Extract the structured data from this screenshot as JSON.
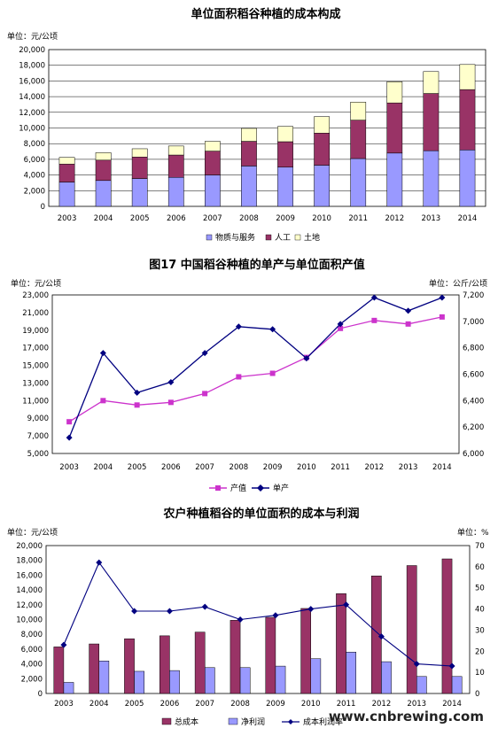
{
  "chart_data": [
    {
      "type": "bar",
      "stacked": true,
      "title": "单位面积稻谷种植的成本构成",
      "unit_label": "单位：元/公顷",
      "categories": [
        "2003",
        "2004",
        "2005",
        "2006",
        "2007",
        "2008",
        "2009",
        "2010",
        "2011",
        "2012",
        "2013",
        "2014"
      ],
      "series": [
        {
          "name": "物质与服务",
          "color": "#9999ff",
          "values": [
            3100,
            3300,
            3550,
            3700,
            4000,
            5150,
            5000,
            5250,
            6100,
            6800,
            7100,
            7200
          ]
        },
        {
          "name": "人工",
          "color": "#993366",
          "values": [
            2300,
            2600,
            2750,
            2850,
            3050,
            3150,
            3250,
            4100,
            4900,
            6400,
            7300,
            7700
          ]
        },
        {
          "name": "土地",
          "color": "#ffffcc",
          "values": [
            850,
            950,
            1050,
            1150,
            1250,
            1650,
            1950,
            2100,
            2300,
            2700,
            2800,
            3200
          ]
        }
      ],
      "ylim": [
        0,
        20000
      ],
      "yticks": [
        "0",
        "2,000",
        "4,000",
        "6,000",
        "8,000",
        "10,000",
        "12,000",
        "14,000",
        "16,000",
        "18,000",
        "20,000"
      ],
      "legend_labels": [
        "物质与服务",
        "人工",
        "土地"
      ],
      "grid": true,
      "legend_position": "bottom"
    },
    {
      "type": "line",
      "title": "图17 中国稻谷种植的单产与单位面积产值",
      "left_unit_label": "单位：元/公顷",
      "right_unit_label": "单位：公斤/公顷",
      "categories": [
        "2003",
        "2004",
        "2005",
        "2006",
        "2007",
        "2008",
        "2009",
        "2010",
        "2011",
        "2012",
        "2013",
        "2014"
      ],
      "series": [
        {
          "name": "产值",
          "axis": "left",
          "color": "#cc33cc",
          "values": [
            8600,
            11000,
            10500,
            10800,
            11800,
            13700,
            14100,
            15900,
            19200,
            20100,
            19700,
            20500
          ]
        },
        {
          "name": "单产",
          "axis": "right",
          "color": "#000080",
          "values": [
            6120,
            6760,
            6460,
            6540,
            6760,
            6960,
            6940,
            6720,
            6980,
            7180,
            7080,
            7180
          ]
        }
      ],
      "ylim_left": [
        5000,
        23000
      ],
      "yticks_left": [
        "5,000",
        "7,000",
        "9,000",
        "11,000",
        "13,000",
        "15,000",
        "17,000",
        "19,000",
        "21,000",
        "23,000"
      ],
      "ylim_right": [
        6000,
        7200
      ],
      "yticks_right": [
        "6,000",
        "6,200",
        "6,400",
        "6,600",
        "6,800",
        "7,000",
        "7,200"
      ],
      "legend_labels": [
        "产值",
        "单产"
      ],
      "legend_position": "bottom"
    },
    {
      "type": "bar",
      "title": "农户种植稻谷的单位面积的成本与利润",
      "left_unit_label": "单位：元/公顷",
      "right_unit_label": "单位：%",
      "categories": [
        "2003",
        "2004",
        "2005",
        "2006",
        "2007",
        "2008",
        "2009",
        "2010",
        "2011",
        "2012",
        "2013",
        "2014"
      ],
      "series": [
        {
          "name": "总成本",
          "type": "bar",
          "axis": "left",
          "color": "#993366",
          "values": [
            6300,
            6700,
            7400,
            7800,
            8300,
            9900,
            10300,
            11500,
            13500,
            15900,
            17300,
            18200
          ]
        },
        {
          "name": "净利润",
          "type": "bar",
          "axis": "left",
          "color": "#9999ff",
          "values": [
            1500,
            4400,
            3000,
            3100,
            3500,
            3500,
            3700,
            4700,
            5600,
            4300,
            2300,
            2300
          ]
        },
        {
          "name": "成本利润率",
          "type": "line",
          "axis": "right",
          "color": "#000080",
          "values": [
            23,
            62,
            39,
            39,
            41,
            35,
            37,
            40,
            42,
            27,
            14,
            13
          ]
        }
      ],
      "ylim_left": [
        0,
        20000
      ],
      "yticks_left": [
        "0",
        "2,000",
        "4,000",
        "6,000",
        "8,000",
        "10,000",
        "12,000",
        "14,000",
        "16,000",
        "18,000",
        "20,000"
      ],
      "ylim_right": [
        0,
        70
      ],
      "yticks_right": [
        "0",
        "10",
        "20",
        "30",
        "40",
        "50",
        "60",
        "70"
      ],
      "legend_labels": [
        "总成本",
        "净利润",
        "成本利润率"
      ],
      "legend_position": "bottom"
    }
  ],
  "watermark": "www.cnbrewing.com"
}
